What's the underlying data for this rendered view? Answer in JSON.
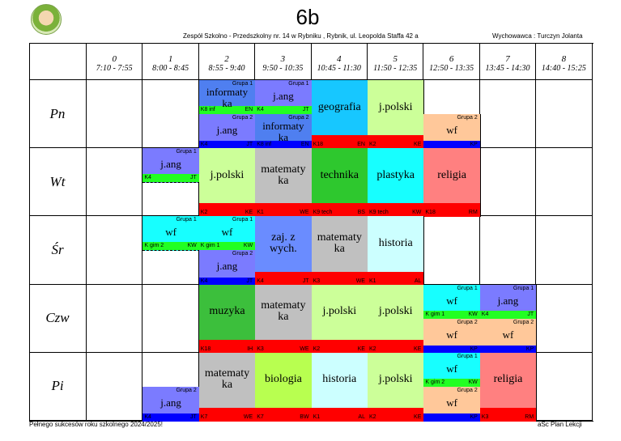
{
  "header": {
    "title": "6b",
    "school": "Zespół Szkolno - Przedszkolny nr. 14 w Rybniku  , Rybnik, ul. Leopolda Staffa 42 a",
    "teacher": "Wychowawca : Turczyn Jolanta",
    "logo": "school-logo"
  },
  "footer": {
    "left": "Pełnego sukcesów roku szkolnego 2024/2025!",
    "right": "aSc Plan Lekcji"
  },
  "periods": [
    {
      "num": "0",
      "time": "7:10 - 7:55"
    },
    {
      "num": "1",
      "time": "8:00 - 8:45"
    },
    {
      "num": "2",
      "time": "8:55 - 9:40"
    },
    {
      "num": "3",
      "time": "9:50 - 10:35"
    },
    {
      "num": "4",
      "time": "10:45 - 11:30"
    },
    {
      "num": "5",
      "time": "11:50 - 12:35"
    },
    {
      "num": "6",
      "time": "12:50 - 13:35"
    },
    {
      "num": "7",
      "time": "13:45 - 14:30"
    },
    {
      "num": "8",
      "time": "14:40 - 15:25"
    }
  ],
  "days": [
    "Pn",
    "Wt",
    "Śr",
    "Czw",
    "Pi"
  ],
  "colors": {
    "informatyka": "#4f7ff0",
    "jang": "#7b7bff",
    "geografia": "#17c7ff",
    "jpolski": "#ccff99",
    "wf": "#ffc89a",
    "matematyka": "#c0c0c0",
    "technika": "#2ec82e",
    "plastyka": "#17ffff",
    "religia": "#ff8080",
    "zaj": "#6a8cff",
    "historia": "#ccffff",
    "muzyka": "#3cbf3c",
    "biologia": "#b8ff50",
    "wf_top": "#17ffff",
    "red_strip": "#ff0000",
    "blue_strip": "#0000ff",
    "green_strip": "#22ff22"
  },
  "lessons": [
    {
      "day": 0,
      "period": 2,
      "part": "top",
      "subject": "informatyka",
      "lines": [
        "informaty",
        "ka"
      ],
      "group": "Grupa 1",
      "room": "K8 inf",
      "teacher": "EN",
      "color": "#4f7ff0",
      "strip": "#22ff22"
    },
    {
      "day": 0,
      "period": 2,
      "part": "bottom",
      "subject": "j.ang",
      "lines": [
        "j.ang"
      ],
      "group": "Grupa 2",
      "room": "K4",
      "teacher": "JT",
      "color": "#7b7bff",
      "strip": "#0000ff"
    },
    {
      "day": 0,
      "period": 3,
      "part": "top",
      "subject": "j.ang",
      "lines": [
        "j.ang"
      ],
      "group": "Grupa 1",
      "room": "K4",
      "teacher": "JT",
      "color": "#7b7bff",
      "strip": "#22ff22"
    },
    {
      "day": 0,
      "period": 3,
      "part": "bottom",
      "subject": "informatyka",
      "lines": [
        "informaty",
        "ka"
      ],
      "group": "Grupa 2",
      "room": "K8 inf",
      "teacher": "EN",
      "color": "#4f7ff0",
      "strip": "#0000ff"
    },
    {
      "day": 0,
      "period": 4,
      "part": "full",
      "subject": "geografia",
      "lines": [
        "geografia"
      ],
      "group": "",
      "room": "K18",
      "teacher": "EN",
      "color": "#17c7ff",
      "strip": "#ff0000"
    },
    {
      "day": 0,
      "period": 5,
      "part": "full",
      "subject": "j.polski",
      "lines": [
        "j.polski"
      ],
      "group": "",
      "room": "K2",
      "teacher": "KE",
      "color": "#ccff99",
      "strip": "#ff0000"
    },
    {
      "day": 0,
      "period": 6,
      "part": "bottom",
      "subject": "wf",
      "lines": [
        "wf"
      ],
      "group": "Grupa 2",
      "room": "",
      "teacher": "KP",
      "color": "#ffc89a",
      "strip": "#0000ff"
    },
    {
      "day": 1,
      "period": 1,
      "part": "top",
      "subject": "j.ang",
      "lines": [
        "j.ang"
      ],
      "group": "Grupa 1",
      "room": "K4",
      "teacher": "JT",
      "color": "#7b7bff",
      "strip": "#22ff22"
    },
    {
      "day": 1,
      "period": 2,
      "part": "full",
      "subject": "j.polski",
      "lines": [
        "j.polski"
      ],
      "group": "",
      "room": "K2",
      "teacher": "KE",
      "color": "#ccff99",
      "strip": "#ff0000"
    },
    {
      "day": 1,
      "period": 3,
      "part": "full",
      "subject": "matematyka",
      "lines": [
        "matematy",
        "ka"
      ],
      "group": "",
      "room": "K1",
      "teacher": "WE",
      "color": "#c0c0c0",
      "strip": "#ff0000"
    },
    {
      "day": 1,
      "period": 4,
      "part": "full",
      "subject": "technika",
      "lines": [
        "technika"
      ],
      "group": "",
      "room": "K9 tech",
      "teacher": "BS",
      "color": "#2ec82e",
      "strip": "#ff0000"
    },
    {
      "day": 1,
      "period": 5,
      "part": "full",
      "subject": "plastyka",
      "lines": [
        "plastyka"
      ],
      "group": "",
      "room": "K9 tech",
      "teacher": "KW",
      "color": "#17ffff",
      "strip": "#ff0000"
    },
    {
      "day": 1,
      "period": 6,
      "part": "full",
      "subject": "religia",
      "lines": [
        "religia"
      ],
      "group": "",
      "room": "K18",
      "teacher": "RM",
      "color": "#ff8080",
      "strip": "#ff0000"
    },
    {
      "day": 2,
      "period": 1,
      "part": "top",
      "subject": "wf",
      "lines": [
        "wf"
      ],
      "group": "Grupa 1",
      "room": "K gim 2",
      "teacher": "KW",
      "color": "#17ffff",
      "strip": "#22ff22"
    },
    {
      "day": 2,
      "period": 2,
      "part": "top",
      "subject": "wf",
      "lines": [
        "wf"
      ],
      "group": "Grupa 1",
      "room": "K gim 1",
      "teacher": "KW",
      "color": "#17ffff",
      "strip": "#22ff22"
    },
    {
      "day": 2,
      "period": 2,
      "part": "bottom",
      "subject": "j.ang",
      "lines": [
        "j.ang"
      ],
      "group": "Grupa 2",
      "room": "K4",
      "teacher": "JT",
      "color": "#7b7bff",
      "strip": "#0000ff"
    },
    {
      "day": 2,
      "period": 3,
      "part": "full",
      "subject": "zaj. z wych.",
      "lines": [
        "zaj. z",
        "wych."
      ],
      "group": "",
      "room": "K4",
      "teacher": "JT",
      "color": "#6a8cff",
      "strip": "#ff0000"
    },
    {
      "day": 2,
      "period": 4,
      "part": "full",
      "subject": "matematyka",
      "lines": [
        "matematy",
        "ka"
      ],
      "group": "",
      "room": "K3",
      "teacher": "WE",
      "color": "#c0c0c0",
      "strip": "#ff0000"
    },
    {
      "day": 2,
      "period": 5,
      "part": "full",
      "subject": "historia",
      "lines": [
        "historia"
      ],
      "group": "",
      "room": "K1",
      "teacher": "AL",
      "color": "#ccffff",
      "strip": "#ff0000"
    },
    {
      "day": 3,
      "period": 2,
      "part": "full",
      "subject": "muzyka",
      "lines": [
        "muzyka"
      ],
      "group": "",
      "room": "K18",
      "teacher": "IH",
      "color": "#3cbf3c",
      "strip": "#ff0000"
    },
    {
      "day": 3,
      "period": 3,
      "part": "full",
      "subject": "matematyka",
      "lines": [
        "matematy",
        "ka"
      ],
      "group": "",
      "room": "K3",
      "teacher": "WE",
      "color": "#c0c0c0",
      "strip": "#ff0000"
    },
    {
      "day": 3,
      "period": 4,
      "part": "full",
      "subject": "j.polski",
      "lines": [
        "j.polski"
      ],
      "group": "",
      "room": "K2",
      "teacher": "KE",
      "color": "#ccff99",
      "strip": "#ff0000"
    },
    {
      "day": 3,
      "period": 5,
      "part": "full",
      "subject": "j.polski",
      "lines": [
        "j.polski"
      ],
      "group": "",
      "room": "K2",
      "teacher": "KE",
      "color": "#ccff99",
      "strip": "#ff0000"
    },
    {
      "day": 3,
      "period": 6,
      "part": "top",
      "subject": "wf",
      "lines": [
        "wf"
      ],
      "group": "Grupa 1",
      "room": "K gim 1",
      "teacher": "KW",
      "color": "#17ffff",
      "strip": "#22ff22"
    },
    {
      "day": 3,
      "period": 6,
      "part": "bottom",
      "subject": "wf",
      "lines": [
        "wf"
      ],
      "group": "Grupa 2",
      "room": "",
      "teacher": "KP",
      "color": "#ffc89a",
      "strip": "#0000ff"
    },
    {
      "day": 3,
      "period": 7,
      "part": "top",
      "subject": "j.ang",
      "lines": [
        "j.ang"
      ],
      "group": "Grupa 1",
      "room": "K4",
      "teacher": "JT",
      "color": "#7b7bff",
      "strip": "#22ff22"
    },
    {
      "day": 3,
      "period": 7,
      "part": "bottom",
      "subject": "wf",
      "lines": [
        "wf"
      ],
      "group": "Grupa 2",
      "room": "",
      "teacher": "KP",
      "color": "#ffc89a",
      "strip": "#0000ff"
    },
    {
      "day": 4,
      "period": 1,
      "part": "bottom",
      "subject": "j.ang",
      "lines": [
        "j.ang"
      ],
      "group": "Grupa 2",
      "room": "K4",
      "teacher": "JT",
      "color": "#7b7bff",
      "strip": "#0000ff"
    },
    {
      "day": 4,
      "period": 2,
      "part": "full",
      "subject": "matematyka",
      "lines": [
        "matematy",
        "ka"
      ],
      "group": "",
      "room": "K7",
      "teacher": "WE",
      "color": "#c0c0c0",
      "strip": "#ff0000"
    },
    {
      "day": 4,
      "period": 3,
      "part": "full",
      "subject": "biologia",
      "lines": [
        "biologia"
      ],
      "group": "",
      "room": "K7",
      "teacher": "BW",
      "color": "#b8ff50",
      "strip": "#ff0000"
    },
    {
      "day": 4,
      "period": 4,
      "part": "full",
      "subject": "historia",
      "lines": [
        "historia"
      ],
      "group": "",
      "room": "K1",
      "teacher": "AL",
      "color": "#ccffff",
      "strip": "#ff0000"
    },
    {
      "day": 4,
      "period": 5,
      "part": "full",
      "subject": "j.polski",
      "lines": [
        "j.polski"
      ],
      "group": "",
      "room": "K2",
      "teacher": "KE",
      "color": "#ccff99",
      "strip": "#ff0000"
    },
    {
      "day": 4,
      "period": 6,
      "part": "top",
      "subject": "wf",
      "lines": [
        "wf"
      ],
      "group": "Grupa 1",
      "room": "K gim 2",
      "teacher": "KW",
      "color": "#17ffff",
      "strip": "#22ff22"
    },
    {
      "day": 4,
      "period": 6,
      "part": "bottom",
      "subject": "wf",
      "lines": [
        "wf"
      ],
      "group": "Grupa 2",
      "room": "",
      "teacher": "KP",
      "color": "#ffc89a",
      "strip": "#0000ff"
    },
    {
      "day": 4,
      "period": 7,
      "part": "full",
      "subject": "religia",
      "lines": [
        "religia"
      ],
      "group": "",
      "room": "K3",
      "teacher": "RM",
      "color": "#ff8080",
      "strip": "#ff0000"
    }
  ]
}
